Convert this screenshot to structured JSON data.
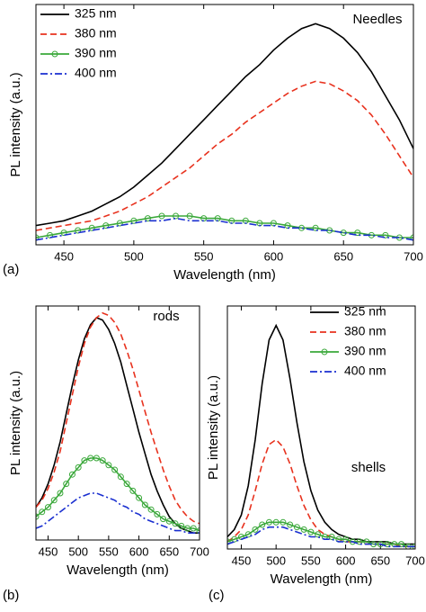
{
  "chart_data": [
    {
      "type": "line",
      "panel_label": "(a)",
      "annotation": "Needles",
      "x_label": "Wavelength (nm)",
      "y_label": "PL intensity (a.u.)",
      "x": [
        430,
        440,
        450,
        460,
        470,
        480,
        490,
        500,
        510,
        520,
        530,
        540,
        550,
        560,
        570,
        580,
        590,
        600,
        610,
        620,
        630,
        640,
        650,
        660,
        670,
        680,
        690,
        700
      ],
      "xlim": [
        430,
        700
      ],
      "xticks": [
        450,
        500,
        550,
        600,
        650,
        700
      ],
      "ylim": [
        0,
        100
      ],
      "legend": "upper left",
      "series": [
        {
          "name": "325 nm",
          "color": "#000000",
          "style": "solid",
          "values": [
            8,
            9,
            10,
            12,
            14,
            17,
            20,
            24,
            29,
            34,
            40,
            46,
            52,
            58,
            64,
            70,
            75,
            81,
            86,
            90,
            92,
            90,
            86,
            80,
            72,
            62,
            52,
            40
          ]
        },
        {
          "name": "380 nm",
          "color": "#e8321e",
          "style": "dashed",
          "values": [
            6,
            7,
            8,
            9,
            10,
            12,
            14,
            17,
            20,
            24,
            28,
            32,
            37,
            42,
            46,
            51,
            55,
            59,
            63,
            66,
            68,
            67,
            64,
            60,
            54,
            46,
            37,
            28
          ]
        },
        {
          "name": "390 nm",
          "color": "#3aa83a",
          "style": "solid",
          "marker": "o",
          "values": [
            3,
            4,
            5,
            6,
            7,
            8,
            9,
            10,
            11,
            12,
            12,
            12,
            11,
            11,
            10,
            10,
            9,
            9,
            8,
            7,
            7,
            6,
            5,
            5,
            4,
            4,
            3,
            3
          ]
        },
        {
          "name": "400 nm",
          "color": "#1a2fd0",
          "style": "dashdot",
          "values": [
            2,
            3,
            4,
            5,
            6,
            7,
            8,
            9,
            10,
            10,
            11,
            10,
            10,
            10,
            9,
            9,
            8,
            8,
            7,
            7,
            6,
            6,
            5,
            4,
            4,
            3,
            3,
            2
          ]
        }
      ]
    },
    {
      "type": "line",
      "panel_label": "(b)",
      "annotation": "rods",
      "x_label": "Wavelength (nm)",
      "y_label": "PL intensity (a.u.)",
      "x": [
        430,
        440,
        450,
        460,
        470,
        480,
        490,
        500,
        510,
        520,
        530,
        540,
        550,
        560,
        570,
        580,
        590,
        600,
        610,
        620,
        630,
        640,
        650,
        660,
        670,
        680,
        690,
        700
      ],
      "xlim": [
        430,
        700
      ],
      "xticks": [
        450,
        500,
        550,
        600,
        650,
        700
      ],
      "ylim": [
        0,
        100
      ],
      "series": [
        {
          "color": "#000000",
          "style": "solid",
          "values": [
            14,
            18,
            24,
            32,
            42,
            54,
            66,
            77,
            86,
            92,
            95,
            94,
            90,
            84,
            76,
            66,
            56,
            46,
            37,
            28,
            21,
            15,
            10,
            7,
            5,
            4,
            3,
            3
          ]
        },
        {
          "color": "#e8321e",
          "style": "dashed",
          "values": [
            14,
            17,
            22,
            29,
            38,
            50,
            62,
            74,
            84,
            91,
            95,
            97,
            96,
            93,
            88,
            81,
            73,
            64,
            55,
            46,
            38,
            30,
            23,
            17,
            13,
            10,
            8,
            7
          ]
        },
        {
          "color": "#3aa83a",
          "style": "solid",
          "marker": "o",
          "values": [
            10,
            12,
            14,
            17,
            20,
            24,
            28,
            31,
            34,
            35,
            35,
            34,
            32,
            30,
            27,
            24,
            21,
            18,
            15,
            13,
            11,
            9,
            8,
            7,
            6,
            5,
            5,
            4
          ]
        },
        {
          "color": "#1a2fd0",
          "style": "dashdot",
          "values": [
            5,
            6,
            8,
            10,
            12,
            14,
            16,
            18,
            19,
            20,
            20,
            19,
            18,
            17,
            15,
            14,
            12,
            11,
            9,
            8,
            7,
            6,
            5,
            4,
            4,
            3,
            3,
            3
          ]
        }
      ]
    },
    {
      "type": "line",
      "panel_label": "(c)",
      "annotation": "shells",
      "x_label": "Wavelength (nm)",
      "y_label": "PL intensity (a.u.)",
      "x": [
        430,
        440,
        450,
        460,
        470,
        480,
        490,
        500,
        510,
        520,
        530,
        540,
        550,
        560,
        570,
        580,
        590,
        600,
        610,
        620,
        630,
        640,
        650,
        660,
        670,
        680,
        690,
        700
      ],
      "xlim": [
        430,
        700
      ],
      "xticks": [
        450,
        500,
        550,
        600,
        650,
        700
      ],
      "ylim": [
        0,
        100
      ],
      "legend": "upper right",
      "series": [
        {
          "name": "325 nm",
          "color": "#000000",
          "style": "solid",
          "values": [
            5,
            8,
            14,
            26,
            45,
            68,
            86,
            92,
            86,
            70,
            52,
            36,
            24,
            16,
            11,
            8,
            6,
            5,
            4,
            4,
            3,
            3,
            3,
            3,
            2,
            2,
            2,
            2
          ]
        },
        {
          "name": "380 nm",
          "color": "#e8321e",
          "style": "dashed",
          "values": [
            3,
            5,
            8,
            14,
            24,
            35,
            43,
            45,
            42,
            35,
            26,
            18,
            12,
            8,
            6,
            5,
            4,
            3,
            3,
            3,
            2,
            2,
            2,
            2,
            2,
            1,
            1,
            1
          ]
        },
        {
          "name": "390 nm",
          "color": "#3aa83a",
          "style": "solid",
          "marker": "o",
          "values": [
            3,
            4,
            5,
            6,
            8,
            10,
            11,
            11,
            11,
            10,
            9,
            8,
            7,
            6,
            5,
            5,
            4,
            4,
            3,
            3,
            3,
            2,
            2,
            2,
            2,
            2,
            1,
            1
          ]
        },
        {
          "name": "400 nm",
          "color": "#1a2fd0",
          "style": "dashdot",
          "values": [
            2,
            3,
            4,
            5,
            6,
            8,
            9,
            9,
            9,
            8,
            7,
            6,
            5,
            5,
            4,
            4,
            3,
            3,
            3,
            2,
            2,
            2,
            2,
            1,
            1,
            1,
            1,
            1
          ]
        }
      ]
    }
  ]
}
